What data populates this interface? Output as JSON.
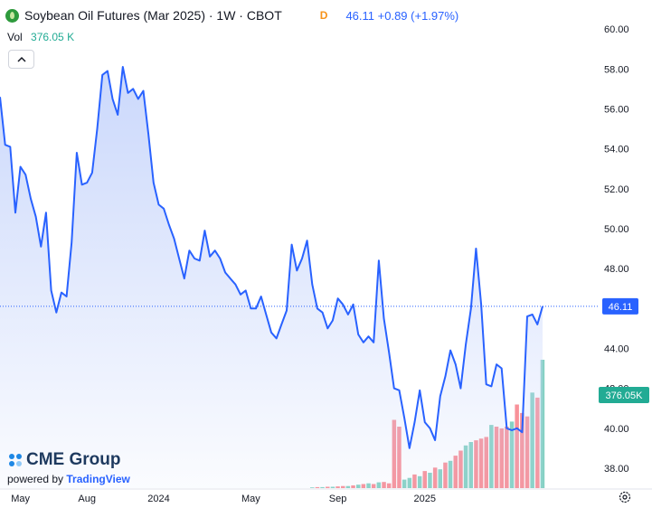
{
  "header": {
    "title": "Soybean Oil Futures (Mar 2025) · 1W · CBOT",
    "d_badge": "D",
    "last_price": "46.11",
    "change": "+0.89 (+1.97%)",
    "vol_label": "Vol",
    "vol_value": "376.05 K"
  },
  "branding": {
    "company": "CME Group",
    "powered_prefix": "powered by",
    "powered_brand": "TradingView"
  },
  "colors": {
    "line": "#2962ff",
    "area_top": "#c8d6fb",
    "vol_up": "#22ab94",
    "vol_down": "#f23645",
    "price_label_bg": "#2962ff",
    "vol_label_bg": "#22ab94"
  },
  "icons": [
    "chevron-up-icon",
    "soybean-logo-icon",
    "settings-icon",
    "cme-logo-icon"
  ],
  "chart_data": {
    "type": "area",
    "title": "Soybean Oil Futures (Mar 2025) · 1W · CBOT",
    "grid": false,
    "ylim": [
      37.0,
      61.0
    ],
    "yticks": [
      38,
      40,
      42,
      44,
      46,
      48,
      50,
      52,
      54,
      56,
      58,
      60
    ],
    "ytick_labels": [
      "38.00",
      "40.00",
      "42.00",
      "44.00",
      "46.00",
      "48.00",
      "50.00",
      "52.00",
      "54.00",
      "56.00",
      "58.00",
      "60.00"
    ],
    "xticks": [
      {
        "label": "May",
        "index": 4
      },
      {
        "label": "Aug",
        "index": 17
      },
      {
        "label": "2024",
        "index": 31
      },
      {
        "label": "May",
        "index": 49
      },
      {
        "label": "Sep",
        "index": 66
      },
      {
        "label": "2025",
        "index": 83
      }
    ],
    "last_price_label": "46.11",
    "last_volume_label": "376.05K",
    "series": [
      {
        "name": "Price",
        "values": [
          56.6,
          54.2,
          54.1,
          50.8,
          53.1,
          52.7,
          51.5,
          50.6,
          49.1,
          50.8,
          46.9,
          45.8,
          46.8,
          46.6,
          49.3,
          53.8,
          52.2,
          52.3,
          52.8,
          55.0,
          57.7,
          57.9,
          56.5,
          55.7,
          58.1,
          56.8,
          57.0,
          56.5,
          56.9,
          54.7,
          52.3,
          51.2,
          51.0,
          50.2,
          49.5,
          48.5,
          47.5,
          48.9,
          48.5,
          48.4,
          49.9,
          48.6,
          48.9,
          48.5,
          47.8,
          47.5,
          47.2,
          46.7,
          46.9,
          46.0,
          46.0,
          46.6,
          45.7,
          44.8,
          44.5,
          45.2,
          45.9,
          49.2,
          47.9,
          48.5,
          49.4,
          47.2,
          46.0,
          45.8,
          45.0,
          45.4,
          46.5,
          46.2,
          45.7,
          46.2,
          44.7,
          44.3,
          44.6,
          44.3,
          48.4,
          45.5,
          43.8,
          42.0,
          41.9,
          40.5,
          39.0,
          40.3,
          41.9,
          40.3,
          40.0,
          39.4,
          41.6,
          42.6,
          43.9,
          43.2,
          42.0,
          44.2,
          46.0,
          49.0,
          46.2,
          42.2,
          42.1,
          43.2,
          43.0,
          40.0,
          39.9,
          40.0,
          39.8,
          45.6,
          45.7,
          45.2,
          46.11
        ]
      },
      {
        "name": "Volume",
        "values": [
          0,
          0,
          0,
          0,
          0,
          0,
          0,
          0,
          0,
          0,
          0,
          0,
          0,
          0,
          0,
          0,
          0,
          0,
          0,
          0,
          0,
          0,
          0,
          0,
          0,
          0,
          0,
          0,
          0,
          0,
          0,
          0,
          0,
          0,
          0,
          0,
          0,
          0,
          0,
          0,
          0,
          0,
          0,
          0,
          0,
          0,
          0,
          0,
          0,
          0,
          0,
          0,
          0,
          0,
          0,
          0,
          0,
          0,
          0,
          0,
          0,
          2,
          3,
          3,
          4,
          4,
          5,
          6,
          6,
          8,
          10,
          12,
          14,
          12,
          17,
          18,
          14,
          200,
          180,
          25,
          30,
          40,
          35,
          50,
          45,
          60,
          55,
          75,
          80,
          95,
          110,
          125,
          135,
          140,
          145,
          150,
          185,
          180,
          175,
          180,
          195,
          245,
          220,
          210,
          280,
          265,
          376.05
        ],
        "directions": [
          "u",
          "u",
          "u",
          "u",
          "u",
          "u",
          "u",
          "u",
          "u",
          "u",
          "u",
          "u",
          "u",
          "u",
          "u",
          "u",
          "u",
          "u",
          "u",
          "u",
          "u",
          "u",
          "u",
          "u",
          "u",
          "u",
          "u",
          "u",
          "u",
          "u",
          "u",
          "u",
          "u",
          "u",
          "u",
          "u",
          "u",
          "u",
          "u",
          "u",
          "u",
          "u",
          "u",
          "u",
          "u",
          "u",
          "u",
          "u",
          "u",
          "u",
          "u",
          "u",
          "u",
          "u",
          "u",
          "u",
          "u",
          "u",
          "u",
          "u",
          "u",
          "u",
          "d",
          "u",
          "d",
          "u",
          "d",
          "d",
          "u",
          "d",
          "u",
          "d",
          "u",
          "d",
          "u",
          "d",
          "d",
          "d",
          "d",
          "u",
          "u",
          "d",
          "u",
          "d",
          "u",
          "d",
          "u",
          "d",
          "u",
          "d",
          "d",
          "u",
          "u",
          "d",
          "d",
          "d",
          "u",
          "d",
          "d",
          "d",
          "u",
          "d",
          "d",
          "d",
          "u",
          "d",
          "u"
        ]
      }
    ]
  }
}
